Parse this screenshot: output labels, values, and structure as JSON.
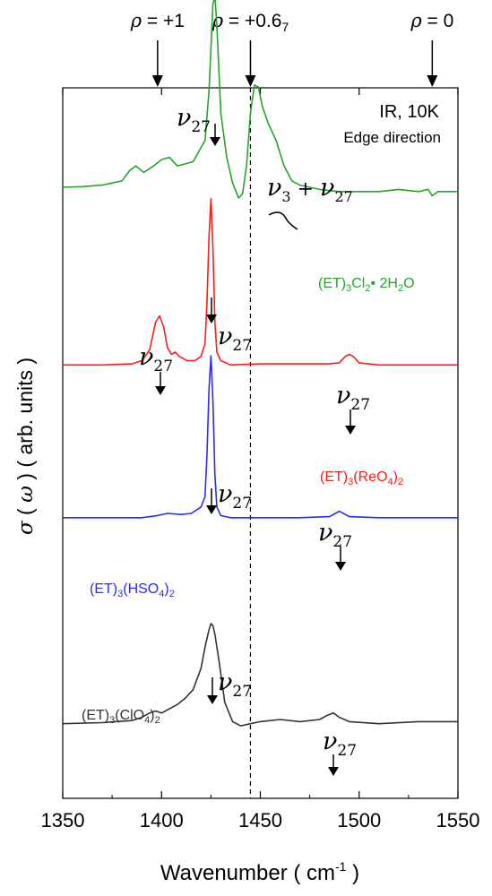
{
  "chart_data": {
    "type": "line",
    "xlabel": "Wavenumber ( cm",
    "xlabel_sup": "-1",
    "xlabel_end": " )",
    "ylabel_sigma": "σ",
    "ylabel_omega": "ω",
    "ylabel_rest": "( arb. units )",
    "xlim": [
      1350,
      1550
    ],
    "x_ticks": [
      1350,
      1400,
      1450,
      1500,
      1550
    ],
    "x_tick_labels": [
      "1350",
      "1400",
      "1450",
      "1500",
      "1550"
    ],
    "annotation_top_right": "IR, 10K",
    "annotation_top_right_2": "Edge direction",
    "dashed_line_x": 1445,
    "rho_markers": [
      {
        "x": 1398,
        "rho": "ρ",
        "label": "= +1"
      },
      {
        "x": 1445,
        "rho": "ρ",
        "label": "= +0.6",
        "sub": "7"
      },
      {
        "x": 1537,
        "rho": "ρ",
        "label": "= 0"
      }
    ],
    "mode_label": "ν",
    "mode_sub": "27",
    "combo_label": "ν",
    "combo_sub_a": "3",
    "combo_plus": " + ",
    "combo_sub_b": "27",
    "series": [
      {
        "name": "(ET)3Cl2·2H2O",
        "label_parts": [
          "(ET)",
          "3",
          "Cl",
          "2",
          "• 2H",
          "2",
          "O"
        ],
        "color": "#22a52a",
        "baseline": 0.86,
        "x": [
          1350,
          1360,
          1370,
          1380,
          1384,
          1387,
          1391,
          1396,
          1400,
          1404,
          1408,
          1412,
          1416,
          1419,
          1422,
          1424,
          1426,
          1427,
          1428,
          1430,
          1433,
          1436,
          1439,
          1441,
          1443,
          1445,
          1447,
          1449,
          1451,
          1454,
          1458,
          1462,
          1466,
          1470,
          1480,
          1490,
          1500,
          1510,
          1520,
          1530,
          1535,
          1537,
          1540,
          1550
        ],
        "y": [
          0.0,
          0.003,
          0.01,
          0.03,
          0.08,
          0.1,
          0.07,
          0.1,
          0.13,
          0.14,
          0.1,
          0.11,
          0.12,
          0.17,
          0.22,
          0.45,
          0.86,
          0.9,
          0.76,
          0.35,
          0.14,
          0.02,
          -0.05,
          -0.03,
          0.1,
          0.35,
          0.48,
          0.47,
          0.38,
          0.3,
          0.22,
          0.1,
          0.03,
          0.01,
          -0.01,
          -0.02,
          -0.02,
          -0.02,
          -0.01,
          -0.02,
          -0.01,
          -0.04,
          -0.02,
          -0.02
        ]
      },
      {
        "name": "(ET)3(ReO4)2",
        "label_parts": [
          "(ET)",
          "3",
          "(ReO",
          "4",
          ")",
          "2",
          ""
        ],
        "color": "#ff1a1a",
        "baseline": 0.61,
        "x": [
          1350,
          1370,
          1385,
          1390,
          1394,
          1397,
          1399,
          1401,
          1403,
          1405,
          1407,
          1409,
          1413,
          1417,
          1420,
          1422,
          1423,
          1424,
          1425,
          1426,
          1427,
          1428,
          1430,
          1435,
          1450,
          1470,
          1485,
          1490,
          1493,
          1495,
          1497,
          1500,
          1510,
          1530,
          1550
        ],
        "y": [
          0.0,
          0.0,
          0.005,
          0.02,
          0.07,
          0.2,
          0.23,
          0.18,
          0.08,
          0.05,
          0.06,
          0.04,
          0.02,
          0.02,
          0.04,
          0.1,
          0.3,
          0.6,
          0.78,
          0.55,
          0.2,
          0.06,
          0.02,
          0.0,
          0.005,
          0.005,
          0.005,
          0.01,
          0.04,
          0.05,
          0.04,
          0.01,
          0.0,
          0.0,
          0.0
        ]
      },
      {
        "name": "(ET)3(HSO4)2",
        "label_parts": [
          "(ET)",
          "3",
          "(HSO",
          "4",
          ")",
          "2",
          ""
        ],
        "color": "#2a2aff",
        "baseline": 0.395,
        "x": [
          1350,
          1390,
          1398,
          1403,
          1406,
          1410,
          1415,
          1420,
          1422,
          1423,
          1424,
          1425,
          1426,
          1427,
          1428,
          1430,
          1435,
          1450,
          1470,
          1485,
          1488,
          1490,
          1492,
          1495,
          1510,
          1530,
          1550
        ],
        "y": [
          0.0,
          0.0,
          0.01,
          0.02,
          0.018,
          0.015,
          0.02,
          0.05,
          0.1,
          0.3,
          0.6,
          0.76,
          0.55,
          0.2,
          0.05,
          0.01,
          0.0,
          0.0,
          0.0,
          0.005,
          0.02,
          0.03,
          0.02,
          0.005,
          0.0,
          0.0,
          0.0
        ]
      },
      {
        "name": "(ET)3(ClO4)2",
        "label_parts": [
          "(ET)",
          "3",
          "(ClO",
          "4",
          ")",
          "2",
          ""
        ],
        "color": "#333333",
        "baseline": 0.105,
        "x": [
          1350,
          1370,
          1385,
          1390,
          1394,
          1397,
          1400,
          1404,
          1408,
          1412,
          1416,
          1420,
          1422,
          1424,
          1425,
          1426,
          1427,
          1429,
          1432,
          1436,
          1440,
          1445,
          1450,
          1460,
          1470,
          1480,
          1484,
          1487,
          1490,
          1495,
          1510,
          1530,
          1550
        ],
        "y": [
          0.0,
          0.005,
          0.015,
          0.03,
          0.05,
          0.06,
          0.05,
          0.07,
          0.09,
          0.12,
          0.16,
          0.26,
          0.36,
          0.44,
          0.47,
          0.46,
          0.42,
          0.3,
          0.1,
          0.01,
          -0.01,
          0.0,
          0.01,
          0.02,
          0.01,
          0.02,
          0.04,
          0.05,
          0.03,
          0.01,
          0.0,
          0.01,
          0.01
        ]
      }
    ]
  }
}
